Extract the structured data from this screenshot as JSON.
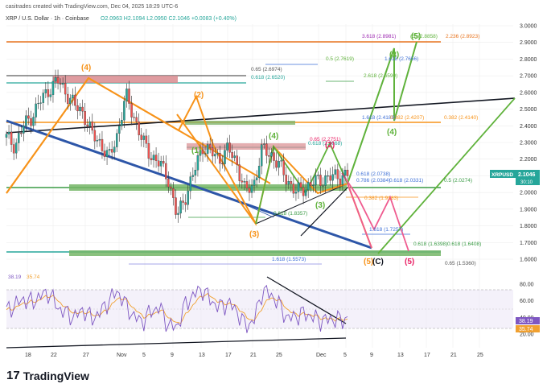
{
  "header": {
    "author_line": "casitrades created with TradingView.com, Dec 04, 2025 18:29 UTC-6",
    "symbol_line": "XRP / U.S. Dollar · 1h · Coinbase",
    "ohlc": "O2.0963  H2.1094  L2.0950  C2.1046  +0.0083 (+0.40%)"
  },
  "price_axis": {
    "ticks": [
      "3.0000",
      "2.9000",
      "2.8000",
      "2.7000",
      "2.6000",
      "2.5000",
      "2.4000",
      "2.3000",
      "2.2000",
      "2.1000",
      "2.0000",
      "1.9000",
      "1.8000",
      "1.7000",
      "1.6000"
    ],
    "last_label": "XRPUSD",
    "last_price": "2.1046",
    "countdown": "30:10"
  },
  "rsi_axis": {
    "ticks": [
      "80.00",
      "60.00",
      "40.00",
      "20.00"
    ],
    "header": "38.19",
    "header2": "35.74",
    "label1": "38.19",
    "label2": "35.74"
  },
  "time_axis": [
    "18",
    "22",
    "27",
    "Nov",
    "5",
    "9",
    "13",
    "17",
    "21",
    "25",
    "Dec",
    "5",
    "9",
    "13",
    "17",
    "21",
    "25"
  ],
  "fib_labels": [
    "3.618 (2.8981)",
    "2.236 (2.8923)",
    "(5) (2.8858)",
    "1.618 (2.7656)",
    "0.5 (2.7619)",
    "0.65 (2.6974)",
    "0.618 (2.6520)",
    "2.618 (2.6590)",
    "1.618 (2.4189)",
    "0.382 (2.4207)",
    "0.382 (2.4140)",
    "0.65 (2.2751)",
    "0.618 (2.2668)",
    "0.618 (2.0738)",
    "0.786 (2.0384)",
    "0.618 (2.0331)",
    "0.5 (2.0274)",
    "0.382 (1.9183)",
    "0.618 (1.8357)",
    "1.618 (1.7257)",
    "0.618 (1.6398)",
    "0.618 (1.6408)",
    "1.618 (1.5573)",
    "0.65 (1.5360)"
  ],
  "wave_labels": [
    "(4)",
    "(2)",
    "(3)",
    "(1)",
    "(4)",
    "(3)",
    "(2)",
    "(5)",
    "(3)",
    "(4)",
    "(5)",
    "(C)",
    "(5)"
  ],
  "brand": {
    "mark": "17",
    "name": "TradingView"
  },
  "chart_data": {
    "type": "line",
    "title": "XRP / U.S. Dollar · 1h · Coinbase",
    "y_range": [
      1.55,
      3.02
    ],
    "rsi_range": [
      15,
      85
    ],
    "series": [
      {
        "name": "XRPUSD",
        "x": [
          0,
          4,
          8,
          12,
          16,
          20,
          24,
          28,
          32,
          36,
          40,
          44,
          48,
          52,
          56,
          60,
          64,
          68,
          72,
          76,
          80,
          84,
          88,
          92,
          96,
          100,
          104,
          108,
          112,
          116,
          120,
          124,
          128,
          132,
          136,
          140,
          144,
          148,
          152,
          156,
          160
        ],
        "values": [
          2.33,
          2.28,
          2.4,
          2.46,
          2.55,
          2.62,
          2.67,
          2.6,
          2.52,
          2.48,
          2.35,
          2.3,
          2.2,
          2.35,
          2.58,
          2.45,
          2.3,
          2.22,
          2.17,
          2.08,
          1.85,
          1.98,
          2.12,
          2.28,
          2.24,
          2.2,
          2.26,
          2.18,
          2.0,
          2.05,
          2.26,
          2.23,
          2.16,
          2.07,
          2.0,
          2.03,
          2.06,
          2.08,
          2.09,
          2.1,
          2.1046
        ]
      },
      {
        "name": "RSI",
        "x": [
          0,
          4,
          8,
          12,
          16,
          20,
          24,
          28,
          32,
          36,
          40,
          44,
          48,
          52,
          56,
          60,
          64,
          68,
          72,
          76,
          80,
          84,
          88,
          92,
          96,
          100,
          104,
          108,
          112,
          116,
          120,
          124,
          128,
          132,
          136,
          140,
          144,
          148,
          152,
          156,
          160
        ],
        "values": [
          48,
          55,
          62,
          58,
          66,
          70,
          52,
          45,
          40,
          50,
          38,
          46,
          60,
          72,
          55,
          40,
          35,
          48,
          52,
          30,
          28,
          56,
          68,
          74,
          60,
          52,
          58,
          48,
          30,
          35,
          72,
          68,
          55,
          38,
          42,
          45,
          40,
          36,
          38,
          37,
          38.19
        ]
      }
    ],
    "current_price": 2.1046,
    "rsi_current": 38.19,
    "rsi_ma": 35.74,
    "grid": true,
    "colors": {
      "up": "#26a69a",
      "down": "#ef5350",
      "price": "#1e1e1e",
      "wave_orange": "#f7931a",
      "wave_green": "#5fb23b",
      "wave_pink": "#ef5b8f",
      "trend_blue": "#2d56a8",
      "rsi": "#7e57c2",
      "rsi_ma": "#f0a030"
    }
  }
}
